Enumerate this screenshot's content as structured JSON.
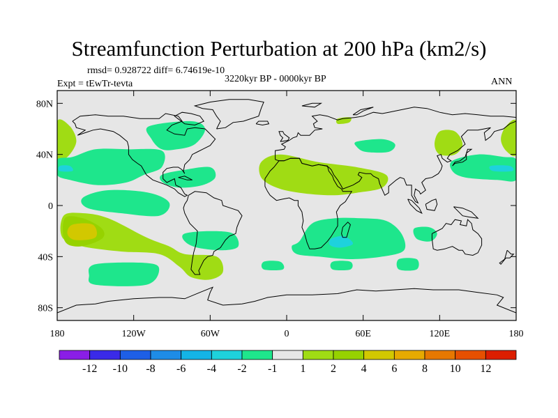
{
  "title": "Streamfunction Perturbation at 200 hPa (km2/s)",
  "stats": "rmsd= 0.928722 diff= 6.74619e-10",
  "experiment": "Expt = tEwTr-tevta",
  "period": "3220kyr BP - 0000kyr BP",
  "season": "ANN",
  "lat_ticks": [
    {
      "value": 80,
      "label": "80N"
    },
    {
      "value": 40,
      "label": "40N"
    },
    {
      "value": 0,
      "label": "0"
    },
    {
      "value": -40,
      "label": "40S"
    },
    {
      "value": -80,
      "label": "80S"
    }
  ],
  "lon_ticks": [
    {
      "value": -180,
      "label": "180"
    },
    {
      "value": -120,
      "label": "120W"
    },
    {
      "value": -60,
      "label": "60W"
    },
    {
      "value": 0,
      "label": "0"
    },
    {
      "value": 60,
      "label": "60E"
    },
    {
      "value": 120,
      "label": "120E"
    },
    {
      "value": 180,
      "label": "180"
    }
  ],
  "colorbar": {
    "colors": [
      "#8a1ee6",
      "#3a2ae8",
      "#1e5fe6",
      "#1e8ce6",
      "#14b4e6",
      "#1ed2dc",
      "#1ee68c",
      "#e6e6e6",
      "#a0dc14",
      "#96d200",
      "#d2c800",
      "#e6aa00",
      "#e67800",
      "#e65000",
      "#dc1e00"
    ],
    "labels": [
      "-12",
      "-10",
      "-8",
      "-6",
      "-4",
      "-2",
      "-1",
      "1",
      "2",
      "4",
      "6",
      "8",
      "10",
      "12"
    ]
  },
  "regions": [
    {
      "name": "n-pacific-pos",
      "value": 2,
      "color": "#a0dc14",
      "points": [
        [
          -180,
          66
        ],
        [
          -170,
          62
        ],
        [
          -165,
          50
        ],
        [
          -172,
          38
        ],
        [
          -180,
          37
        ]
      ]
    },
    {
      "name": "dateline-east-pos",
      "value": 2,
      "color": "#a0dc14",
      "points": [
        [
          180,
          66
        ],
        [
          172,
          62
        ],
        [
          168,
          52
        ],
        [
          172,
          43
        ],
        [
          180,
          40
        ]
      ]
    },
    {
      "name": "w-pacific-pos",
      "value": 2,
      "color": "#a0dc14",
      "points": [
        [
          120,
          58
        ],
        [
          132,
          58
        ],
        [
          138,
          48
        ],
        [
          132,
          40
        ],
        [
          120,
          40
        ],
        [
          116,
          48
        ]
      ]
    },
    {
      "name": "n-america-neg",
      "value": -1,
      "color": "#1ee68c",
      "points": [
        [
          -108,
          62
        ],
        [
          -75,
          66
        ],
        [
          -64,
          60
        ],
        [
          -72,
          48
        ],
        [
          -86,
          44
        ],
        [
          -98,
          44
        ],
        [
          -106,
          52
        ]
      ]
    },
    {
      "name": "n-pacific-neg",
      "value": -1,
      "color": "#1ee68c",
      "points": [
        [
          -180,
          36
        ],
        [
          -168,
          38
        ],
        [
          -150,
          44
        ],
        [
          -125,
          44
        ],
        [
          -98,
          43
        ],
        [
          -98,
          30
        ],
        [
          -112,
          24
        ],
        [
          -126,
          18
        ],
        [
          -148,
          16
        ],
        [
          -170,
          20
        ],
        [
          -180,
          24
        ]
      ]
    },
    {
      "name": "n-pacific-neg-core",
      "value": -2,
      "color": "#1ed2dc",
      "points": [
        [
          -178,
          31
        ],
        [
          -170,
          31
        ],
        [
          -168,
          27
        ],
        [
          -178,
          27
        ]
      ]
    },
    {
      "name": "caribbean-neg",
      "value": -1,
      "color": "#1ee68c",
      "points": [
        [
          -98,
          24
        ],
        [
          -80,
          28
        ],
        [
          -60,
          30
        ],
        [
          -56,
          22
        ],
        [
          -66,
          16
        ],
        [
          -84,
          14
        ],
        [
          -97,
          18
        ]
      ]
    },
    {
      "name": "tropical-pacific-neg",
      "value": -1,
      "color": "#1ee68c",
      "points": [
        [
          -160,
          6
        ],
        [
          -140,
          12
        ],
        [
          -108,
          10
        ],
        [
          -92,
          2
        ],
        [
          -100,
          -8
        ],
        [
          -130,
          -6
        ],
        [
          -156,
          -2
        ]
      ]
    },
    {
      "name": "s-atlantic-neg",
      "value": -1,
      "color": "#1ee68c",
      "points": [
        [
          -80,
          -22
        ],
        [
          -60,
          -20
        ],
        [
          -42,
          -22
        ],
        [
          -38,
          -32
        ],
        [
          -50,
          -35
        ],
        [
          -70,
          -33
        ],
        [
          -80,
          -28
        ]
      ]
    },
    {
      "name": "n-africa-pos",
      "value": 2,
      "color": "#a0dc14",
      "points": [
        [
          -20,
          34
        ],
        [
          -5,
          40
        ],
        [
          25,
          34
        ],
        [
          55,
          30
        ],
        [
          78,
          24
        ],
        [
          75,
          14
        ],
        [
          55,
          10
        ],
        [
          35,
          8
        ],
        [
          10,
          10
        ],
        [
          -8,
          14
        ],
        [
          -20,
          22
        ]
      ]
    },
    {
      "name": "mediterranean-neg",
      "value": -1,
      "color": "#1ee68c",
      "points": [
        [
          55,
          50
        ],
        [
          75,
          52
        ],
        [
          85,
          48
        ],
        [
          80,
          42
        ],
        [
          62,
          42
        ],
        [
          55,
          46
        ]
      ]
    },
    {
      "name": "arctic-pos",
      "value": 2,
      "color": "#a0dc14",
      "points": [
        [
          40,
          68
        ],
        [
          50,
          69
        ],
        [
          49,
          65
        ],
        [
          40,
          64
        ]
      ]
    },
    {
      "name": "indian-ocean-neg",
      "value": -1,
      "color": "#1ee68c",
      "points": [
        [
          10,
          -28
        ],
        [
          20,
          -14
        ],
        [
          38,
          -10
        ],
        [
          58,
          -10
        ],
        [
          78,
          -12
        ],
        [
          90,
          -22
        ],
        [
          92,
          -35
        ],
        [
          75,
          -40
        ],
        [
          50,
          -42
        ],
        [
          25,
          -40
        ],
        [
          8,
          -38
        ],
        [
          4,
          -32
        ]
      ]
    },
    {
      "name": "indian-ocean-neg-core",
      "value": -2,
      "color": "#1ed2dc",
      "points": [
        [
          35,
          -26
        ],
        [
          45,
          -24
        ],
        [
          52,
          -30
        ],
        [
          42,
          -33
        ],
        [
          34,
          -31
        ]
      ]
    },
    {
      "name": "australia-neg",
      "value": -1,
      "color": "#1ee68c",
      "points": [
        [
          100,
          -18
        ],
        [
          112,
          -17
        ],
        [
          118,
          -22
        ],
        [
          113,
          -28
        ],
        [
          102,
          -26
        ]
      ]
    },
    {
      "name": "w-pacific-neg",
      "value": -1,
      "color": "#1ee68c",
      "points": [
        [
          130,
          35
        ],
        [
          150,
          40
        ],
        [
          170,
          38
        ],
        [
          180,
          36
        ],
        [
          180,
          20
        ],
        [
          165,
          20
        ],
        [
          140,
          22
        ],
        [
          130,
          27
        ]
      ]
    },
    {
      "name": "w-pacific-neg-core",
      "value": -2,
      "color": "#1ed2dc",
      "points": [
        [
          160,
          31
        ],
        [
          175,
          31
        ],
        [
          177,
          27
        ],
        [
          162,
          27
        ]
      ]
    },
    {
      "name": "se-pacific-pos",
      "value": 2,
      "color": "#a0dc14",
      "points": [
        [
          -175,
          -8
        ],
        [
          -160,
          -6
        ],
        [
          -140,
          -10
        ],
        [
          -110,
          -25
        ],
        [
          -92,
          -32
        ],
        [
          -80,
          -38
        ],
        [
          -55,
          -40
        ],
        [
          -50,
          -52
        ],
        [
          -60,
          -58
        ],
        [
          -75,
          -56
        ],
        [
          -84,
          -48
        ],
        [
          -100,
          -38
        ],
        [
          -130,
          -36
        ],
        [
          -160,
          -32
        ],
        [
          -176,
          -25
        ]
      ]
    },
    {
      "name": "se-pacific-pos-ring",
      "value": 4,
      "color": "#96d200",
      "points": [
        [
          -174,
          -10
        ],
        [
          -160,
          -10
        ],
        [
          -145,
          -18
        ],
        [
          -145,
          -26
        ],
        [
          -162,
          -32
        ],
        [
          -174,
          -28
        ]
      ]
    },
    {
      "name": "se-pacific-pos-core",
      "value": 6,
      "color": "#d2c800",
      "points": [
        [
          -168,
          -15
        ],
        [
          -152,
          -15
        ],
        [
          -150,
          -25
        ],
        [
          -166,
          -27
        ],
        [
          -172,
          -22
        ]
      ]
    },
    {
      "name": "s-pacific-neg",
      "value": -1,
      "color": "#1ee68c",
      "points": [
        [
          -150,
          -46
        ],
        [
          -110,
          -45
        ],
        [
          -100,
          -50
        ],
        [
          -110,
          -62
        ],
        [
          -150,
          -62
        ],
        [
          -155,
          -55
        ]
      ]
    },
    {
      "name": "s-atlantic-small-neg",
      "value": -1,
      "color": "#1ee68c",
      "points": [
        [
          -18,
          -44
        ],
        [
          -5,
          -44
        ],
        [
          -3,
          -50
        ],
        [
          -18,
          -50
        ]
      ]
    },
    {
      "name": "s-indian-small-neg",
      "value": -1,
      "color": "#1ee68c",
      "points": [
        [
          36,
          -44
        ],
        [
          50,
          -44
        ],
        [
          50,
          -50
        ],
        [
          36,
          -50
        ]
      ]
    },
    {
      "name": "s-indian-small-neg-2",
      "value": -1,
      "color": "#1ee68c",
      "points": [
        [
          88,
          -42
        ],
        [
          102,
          -42
        ],
        [
          102,
          -50
        ],
        [
          88,
          -50
        ]
      ]
    }
  ]
}
